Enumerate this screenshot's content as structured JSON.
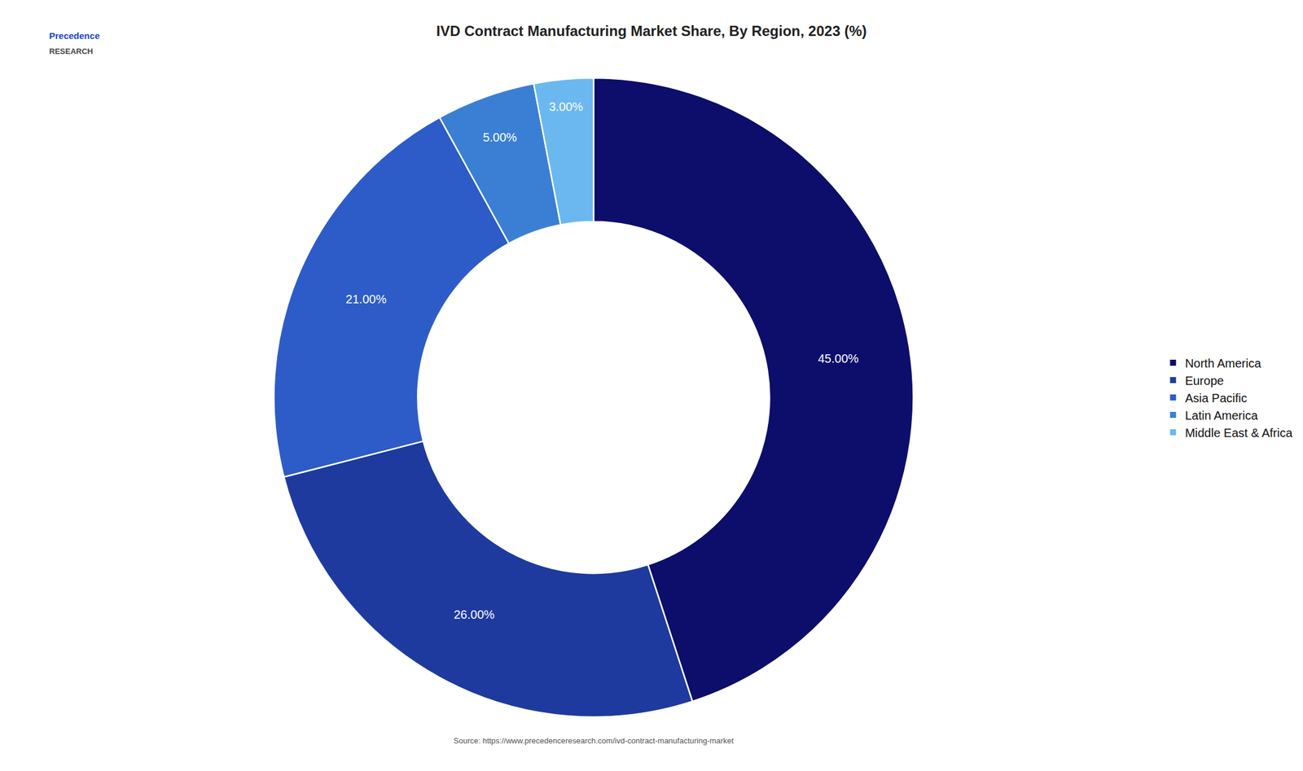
{
  "chart_data": {
    "type": "donut",
    "title": "IVD Contract Manufacturing Market Share, By Region, 2023 (%)",
    "categories": [
      "North America",
      "Europe",
      "Asia Pacific",
      "Latin America",
      "Middle East & Africa"
    ],
    "values": [
      45.0,
      26.0,
      21.0,
      5.0,
      3.0
    ],
    "value_labels": [
      "45.00%",
      "26.00%",
      "21.00%",
      "5.00%",
      "3.00%"
    ],
    "colors": [
      "#0d0d6b",
      "#1e3a9f",
      "#2d5cc8",
      "#3a7fd4",
      "#6bb8f0"
    ],
    "data_labels": true,
    "legend": "right",
    "annotations": [
      "Precedence",
      "RESEARCH",
      "Source: https://www.precedenceresearch.com/ivd-contract-manufacturing-market"
    ]
  }
}
